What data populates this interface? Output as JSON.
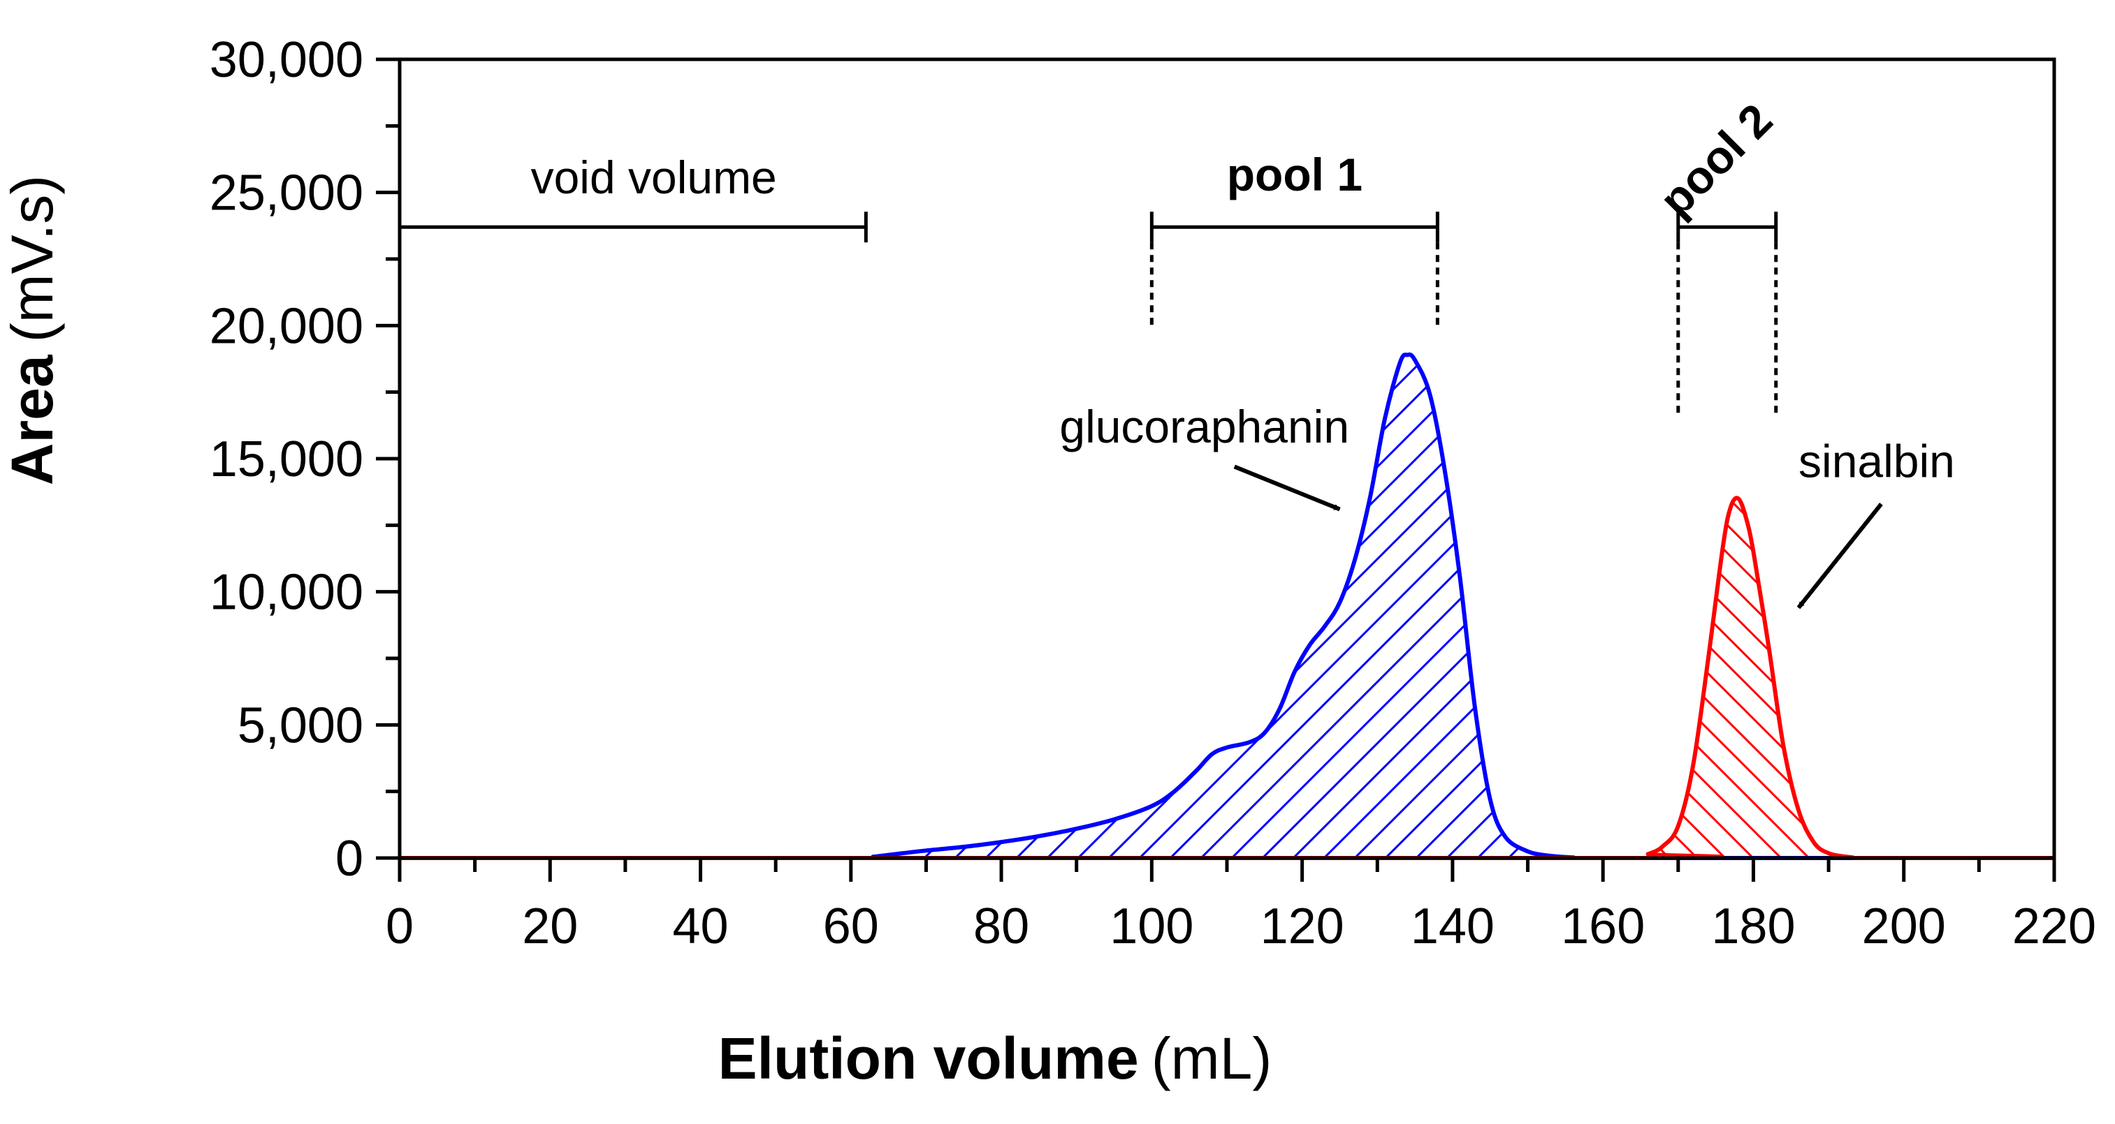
{
  "chart_data": {
    "type": "area",
    "title": "",
    "xlabel": {
      "bold": "Elution volume",
      "unit": "(mL)"
    },
    "ylabel": {
      "bold": "Area",
      "unit": "(mV.s)"
    },
    "xlim": [
      0,
      220
    ],
    "ylim": [
      0,
      30000
    ],
    "x_ticks": [
      0,
      20,
      40,
      60,
      80,
      100,
      120,
      140,
      160,
      180,
      200,
      220
    ],
    "x_tick_labels": [
      "0",
      "20",
      "40",
      "60",
      "80",
      "100",
      "120",
      "140",
      "160",
      "180",
      "200",
      "220"
    ],
    "y_ticks": [
      0,
      5000,
      10000,
      15000,
      20000,
      25000,
      30000
    ],
    "y_tick_labels": [
      "0",
      "5,000",
      "10,000",
      "15,000",
      "20,000",
      "25,000",
      "30,000"
    ],
    "grid": false,
    "series": [
      {
        "name": "glucoraphanin",
        "color": "#0000ff",
        "hatch": "forward",
        "points": [
          [
            0,
            0
          ],
          [
            60,
            0
          ],
          [
            63,
            50
          ],
          [
            66,
            150
          ],
          [
            70,
            280
          ],
          [
            75,
            420
          ],
          [
            80,
            600
          ],
          [
            85,
            820
          ],
          [
            90,
            1100
          ],
          [
            95,
            1450
          ],
          [
            100,
            1950
          ],
          [
            103,
            2500
          ],
          [
            106,
            3300
          ],
          [
            108,
            3900
          ],
          [
            110,
            4150
          ],
          [
            113,
            4350
          ],
          [
            115,
            4700
          ],
          [
            117,
            5600
          ],
          [
            119,
            7000
          ],
          [
            121,
            8000
          ],
          [
            123,
            8700
          ],
          [
            125,
            9600
          ],
          [
            127,
            11200
          ],
          [
            129,
            13500
          ],
          [
            131,
            16500
          ],
          [
            133,
            18600
          ],
          [
            134,
            18900
          ],
          [
            135,
            18700
          ],
          [
            137,
            17400
          ],
          [
            139,
            14500
          ],
          [
            141,
            10500
          ],
          [
            143,
            5600
          ],
          [
            145,
            2200
          ],
          [
            147,
            800
          ],
          [
            150,
            250
          ],
          [
            153,
            80
          ],
          [
            156,
            20
          ],
          [
            160,
            0
          ],
          [
            220,
            0
          ]
        ]
      },
      {
        "name": "sinalbin",
        "color": "#ff0000",
        "hatch": "backward",
        "points": [
          [
            0,
            0
          ],
          [
            163,
            0
          ],
          [
            166,
            150
          ],
          [
            168,
            450
          ],
          [
            170,
            1200
          ],
          [
            172,
            3500
          ],
          [
            174,
            7500
          ],
          [
            176,
            11800
          ],
          [
            177,
            13200
          ],
          [
            178,
            13500
          ],
          [
            179,
            12800
          ],
          [
            180,
            11500
          ],
          [
            182,
            8000
          ],
          [
            184,
            4200
          ],
          [
            186,
            1800
          ],
          [
            188,
            600
          ],
          [
            190,
            180
          ],
          [
            193,
            30
          ],
          [
            196,
            0
          ],
          [
            220,
            0
          ]
        ]
      }
    ],
    "annotations": {
      "void_volume": {
        "label": "void volume",
        "x_start": 0,
        "x_end": 62,
        "y": 23700
      },
      "pool_1": {
        "label": "pool 1",
        "x_start": 100,
        "x_end": 138,
        "y": 23700,
        "dashed_to_y": 20000
      },
      "pool_2": {
        "label": "pool 2",
        "x_start": 170,
        "x_end": 183,
        "y": 23700,
        "dashed_to_y": 16600,
        "label_rotation_deg": -45
      },
      "glucoraphanin_label": {
        "label": "glucoraphanin",
        "text_x": 107,
        "text_y": 15600,
        "arrow_from": [
          111,
          14700
        ],
        "arrow_to": [
          125,
          13100
        ]
      },
      "sinalbin_label": {
        "label": "sinalbin",
        "text_x": 186,
        "text_y": 14300,
        "arrow_from": [
          197,
          13300
        ],
        "arrow_to": [
          186,
          9400
        ]
      }
    }
  }
}
